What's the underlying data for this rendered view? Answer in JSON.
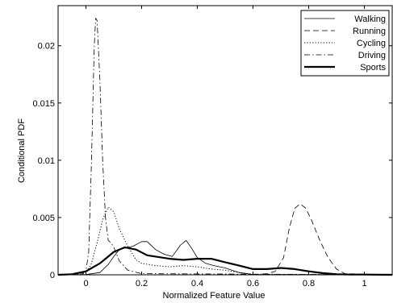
{
  "chart_data": {
    "type": "line",
    "title": "",
    "xlabel": "Normalized Feature Value",
    "ylabel": "Conditional PDF",
    "xlim": [
      -0.1,
      1.1
    ],
    "ylim": [
      0,
      0.0235
    ],
    "xticks": [
      {
        "value": 0,
        "label": "0"
      },
      {
        "value": 0.2,
        "label": "0.2"
      },
      {
        "value": 0.4,
        "label": "0.4"
      },
      {
        "value": 0.6,
        "label": "0.6"
      },
      {
        "value": 0.8,
        "label": "0.8"
      },
      {
        "value": 1,
        "label": "1"
      }
    ],
    "yticks": [
      {
        "value": 0,
        "label": "0"
      },
      {
        "value": 0.005,
        "label": "0.005"
      },
      {
        "value": 0.01,
        "label": "0.01"
      },
      {
        "value": 0.015,
        "label": "0.015"
      },
      {
        "value": 0.02,
        "label": "0.02"
      }
    ],
    "grid": false,
    "legend_position": "top-right",
    "series": [
      {
        "name": "Walking",
        "style": "solid",
        "x": [
          -0.1,
          0.0,
          0.05,
          0.08,
          0.1,
          0.12,
          0.15,
          0.17,
          0.2,
          0.22,
          0.25,
          0.28,
          0.31,
          0.34,
          0.36,
          0.38,
          0.4,
          0.43,
          0.46,
          0.5,
          0.55,
          0.6,
          1.1
        ],
        "y": [
          0,
          2e-05,
          0.0002,
          0.0009,
          0.0016,
          0.0022,
          0.0024,
          0.0025,
          0.0029,
          0.0029,
          0.0022,
          0.0018,
          0.0016,
          0.0026,
          0.003,
          0.0023,
          0.0015,
          0.001,
          0.0008,
          0.0006,
          0.0002,
          3e-05,
          0
        ]
      },
      {
        "name": "Running",
        "style": "dashed",
        "x": [
          -0.1,
          0.6,
          0.65,
          0.68,
          0.71,
          0.73,
          0.75,
          0.77,
          0.79,
          0.81,
          0.84,
          0.87,
          0.9,
          0.93,
          1.1
        ],
        "y": [
          0,
          0,
          0.0001,
          0.0003,
          0.0015,
          0.004,
          0.0058,
          0.0062,
          0.0058,
          0.0048,
          0.003,
          0.0015,
          0.0005,
          0.0001,
          0
        ]
      },
      {
        "name": "Cycling",
        "style": "dotted",
        "x": [
          -0.1,
          0.0,
          0.02,
          0.04,
          0.06,
          0.08,
          0.1,
          0.12,
          0.15,
          0.18,
          0.2,
          0.25,
          0.3,
          0.35,
          0.4,
          0.45,
          0.5,
          0.55,
          0.6,
          1.1
        ],
        "y": [
          0,
          0.0001,
          0.001,
          0.0028,
          0.0048,
          0.0059,
          0.0055,
          0.004,
          0.0025,
          0.0013,
          0.001,
          0.0008,
          0.0007,
          0.0008,
          0.0007,
          0.0005,
          0.0004,
          0.0002,
          5e-05,
          0
        ]
      },
      {
        "name": "Driving",
        "style": "dashdot",
        "x": [
          -0.1,
          -0.02,
          0.0,
          0.01,
          0.02,
          0.03,
          0.035,
          0.04,
          0.05,
          0.06,
          0.07,
          0.08,
          0.09,
          0.1,
          0.12,
          0.15,
          0.2,
          1.1
        ],
        "y": [
          0,
          0,
          0.0003,
          0.002,
          0.01,
          0.02,
          0.0224,
          0.0222,
          0.017,
          0.01,
          0.005,
          0.003,
          0.0028,
          0.0024,
          0.0012,
          0.0004,
          0.0001,
          0
        ]
      },
      {
        "name": "Sports",
        "style": "thick",
        "x": [
          -0.1,
          -0.05,
          0.0,
          0.05,
          0.1,
          0.14,
          0.18,
          0.22,
          0.3,
          0.35,
          0.4,
          0.45,
          0.5,
          0.55,
          0.6,
          0.65,
          0.7,
          0.75,
          0.8,
          0.85,
          0.9,
          0.95,
          1.0,
          1.05,
          1.1
        ],
        "y": [
          0,
          5e-05,
          0.0003,
          0.001,
          0.002,
          0.0024,
          0.0022,
          0.0017,
          0.0014,
          0.0013,
          0.0014,
          0.0014,
          0.0011,
          0.0008,
          0.0005,
          0.0005,
          0.0006,
          0.0005,
          0.0003,
          0.00015,
          5e-05,
          2e-05,
          2e-05,
          1e-05,
          0
        ]
      }
    ]
  }
}
